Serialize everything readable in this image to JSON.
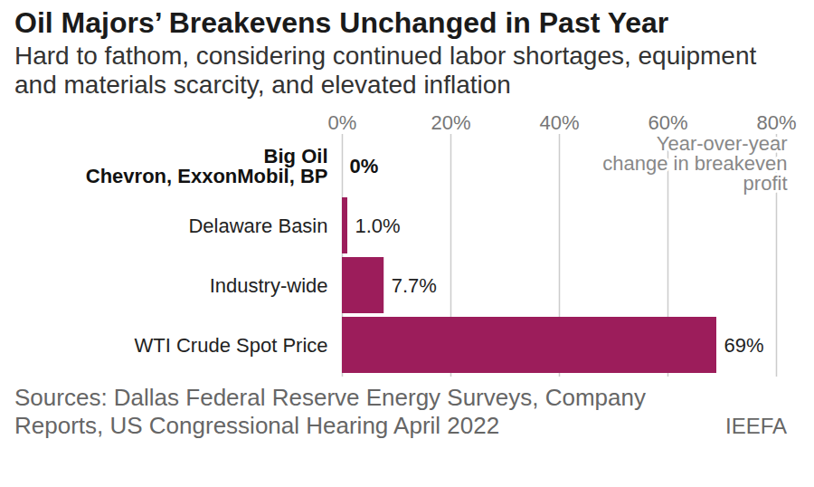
{
  "chart_data": {
    "type": "bar",
    "orientation": "horizontal",
    "title": "Oil Majors’ Breakevens Unchanged in Past Year",
    "subtitle": "Hard to fathom, considering continued labor shortages, equipment and materials scarcity, and elevated inflation",
    "x_label": "Year-over-year change in breakeven profit",
    "categories": [
      "Big Oil\nChevron, ExxonMobil, BP",
      "Delaware Basin",
      "Industry-wide",
      "WTI Crude Spot Price"
    ],
    "values": [
      0,
      1.0,
      7.7,
      69
    ],
    "value_labels": [
      "0%",
      "1.0%",
      "7.7%",
      "69%"
    ],
    "data_labels": true,
    "color": "#9c1d5b",
    "xlim": [
      0,
      80
    ],
    "xticks": [
      {
        "value": 0,
        "label": "0%"
      },
      {
        "value": 20,
        "label": "20%"
      },
      {
        "value": 40,
        "label": "40%"
      },
      {
        "value": 60,
        "label": "60%"
      },
      {
        "value": 80,
        "label": "80%"
      }
    ],
    "grid": true,
    "caption": "Sources: Dallas Federal Reserve Energy Surveys, Company Reports, US Congressional Hearing April 2022",
    "credit": "IEEFA"
  }
}
